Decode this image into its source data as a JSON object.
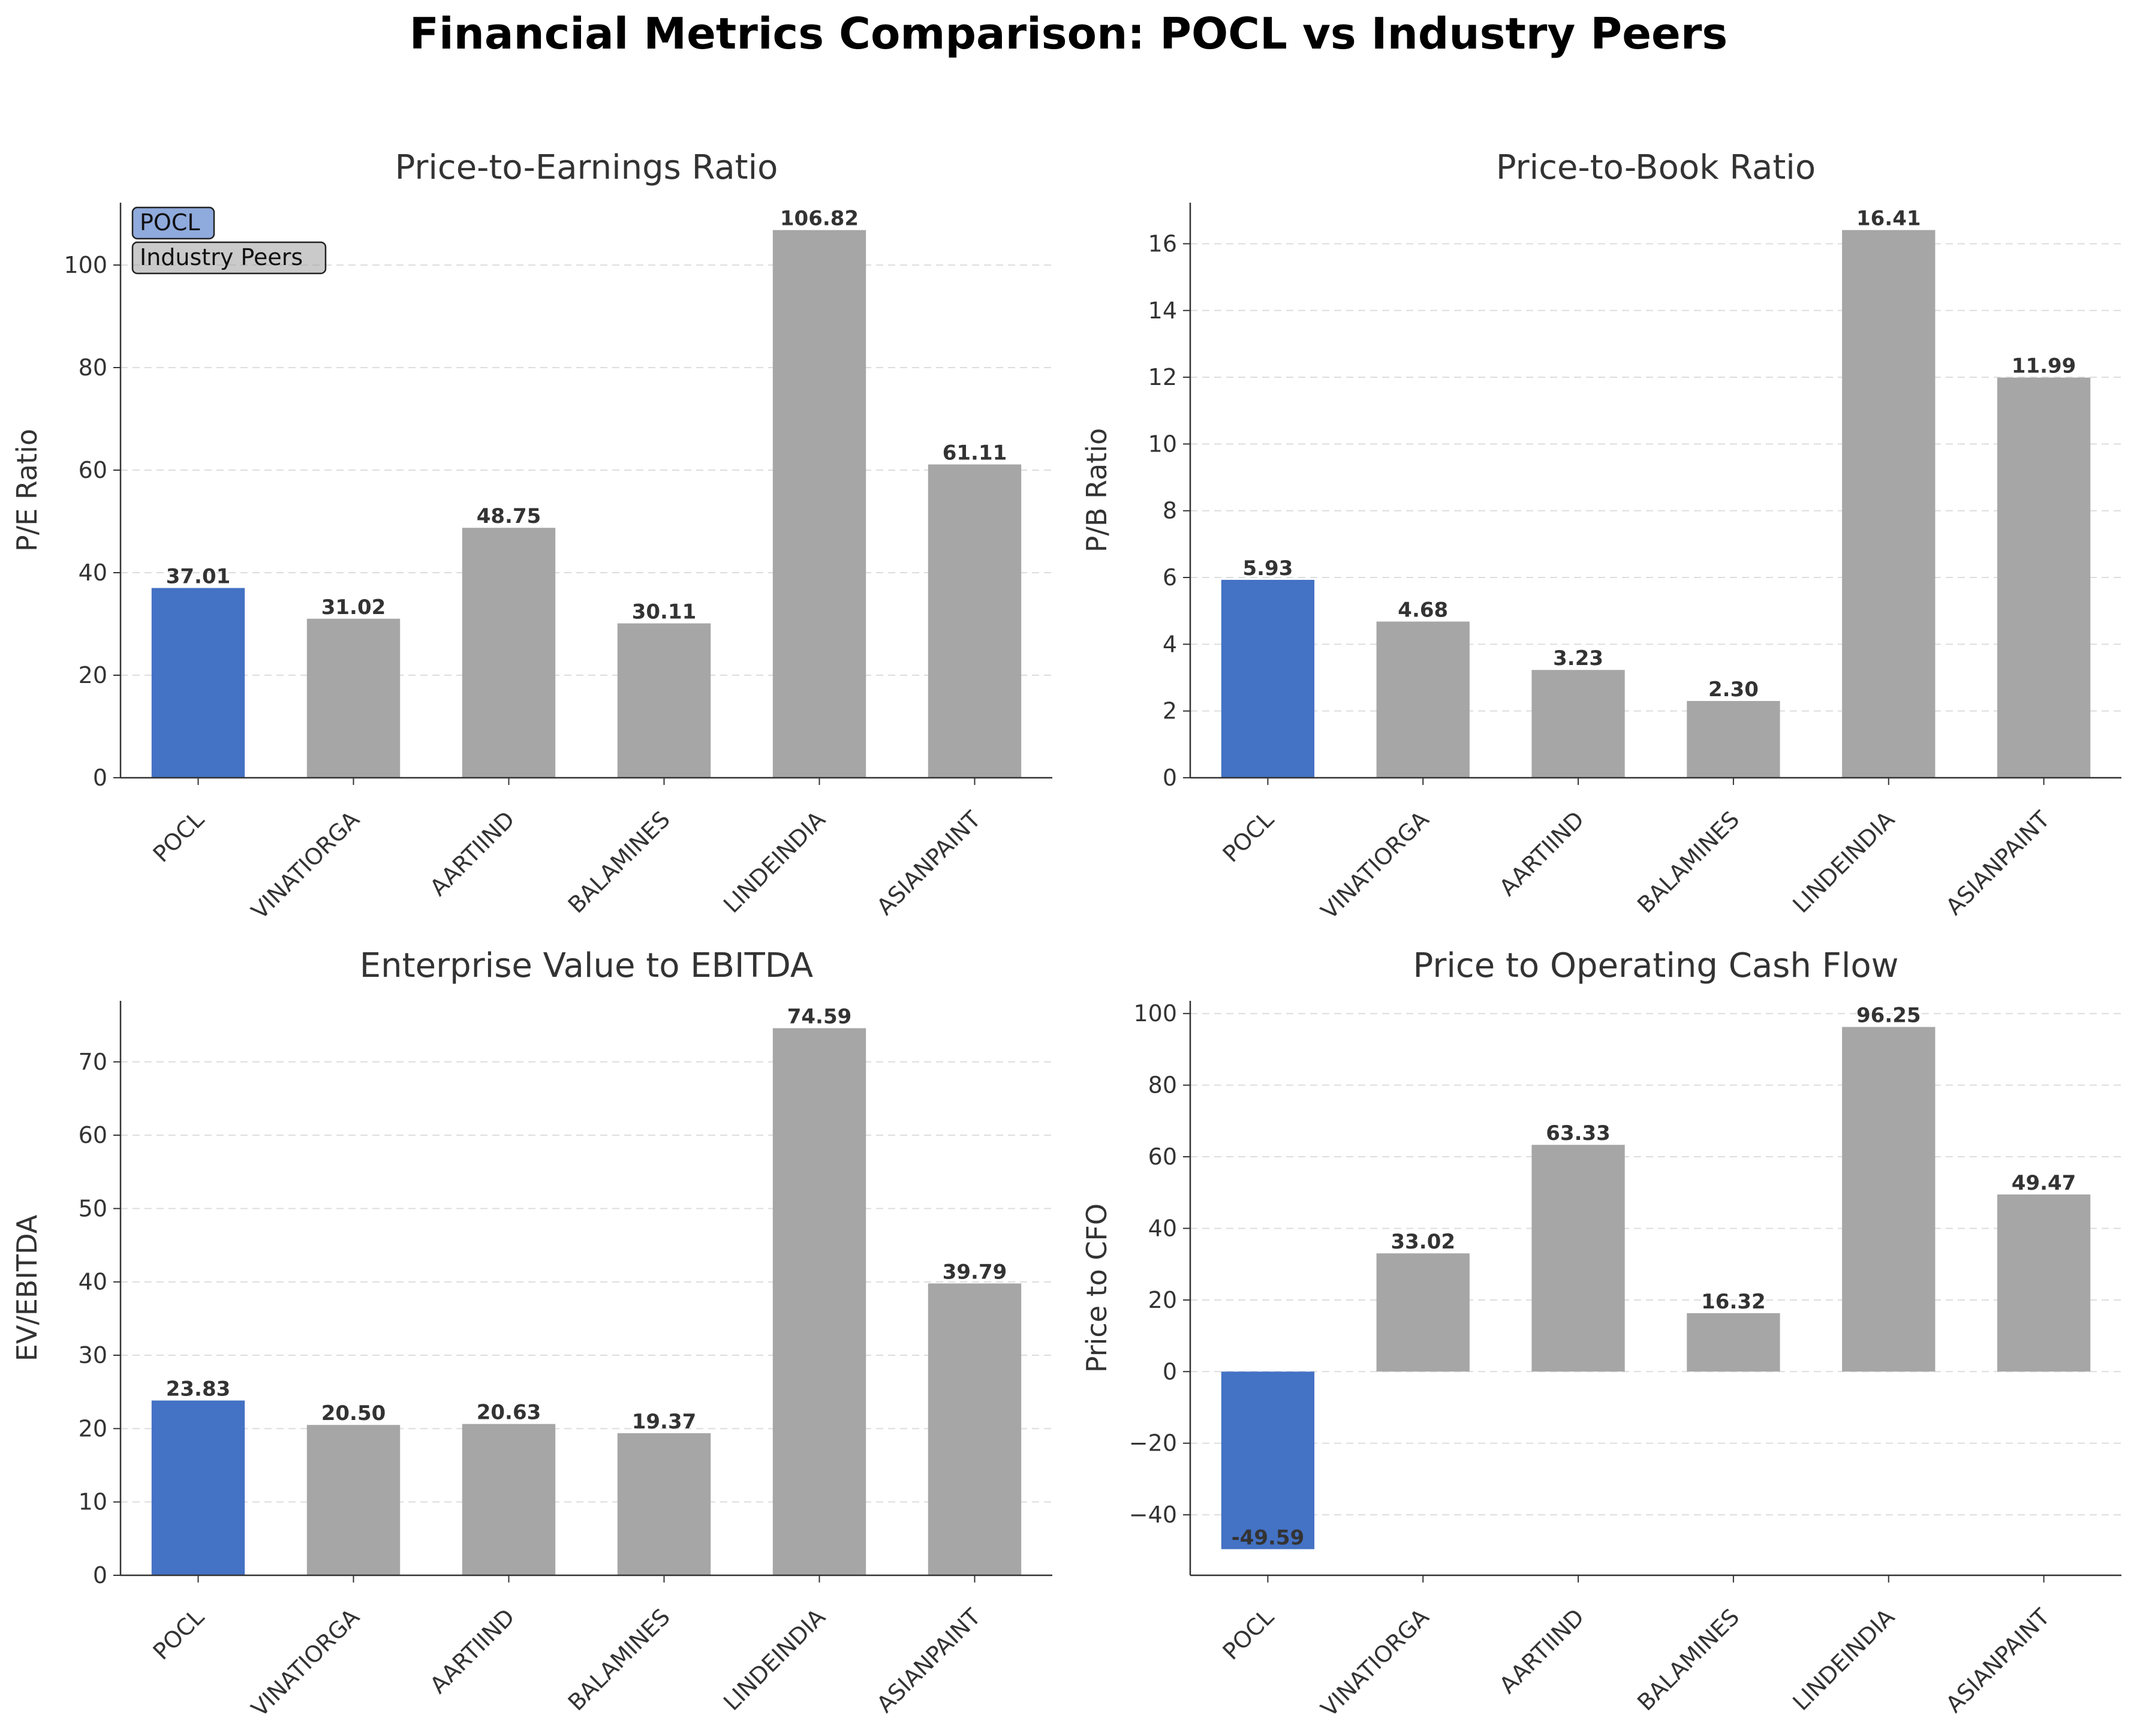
{
  "title": "Financial Metrics Comparison: POCL vs Industry Peers",
  "colors": {
    "pocl": "#4472c4",
    "peers": "#a6a6a6",
    "axis": "#333333",
    "grid": "#dddddd",
    "text": "#333333"
  },
  "legend": {
    "items": [
      {
        "label": "POCL",
        "color": "#4472c4"
      },
      {
        "label": "Industry Peers",
        "color": "#a6a6a6"
      }
    ]
  },
  "chart_data": [
    {
      "type": "bar",
      "title": "Price-to-Earnings Ratio",
      "ylabel": "P/E Ratio",
      "categories": [
        "POCL",
        "VINATIORGA",
        "AARTIIND",
        "BALAMINES",
        "LINDEINDIA",
        "ASIANPAINT"
      ],
      "values": [
        37.01,
        31.02,
        48.75,
        30.11,
        106.82,
        61.11
      ],
      "labels": [
        "37.01",
        "31.02",
        "48.75",
        "30.11",
        "106.82",
        "61.11"
      ],
      "ylim": [
        0,
        112.16
      ],
      "yticks": [
        0,
        20,
        40,
        60,
        80,
        100
      ],
      "ytick_labels": [
        "0",
        "20",
        "40",
        "60",
        "80",
        "100"
      ],
      "grid": "y-dashed",
      "legend": "top-left"
    },
    {
      "type": "bar",
      "title": "Price-to-Book Ratio",
      "ylabel": "P/B Ratio",
      "categories": [
        "POCL",
        "VINATIORGA",
        "AARTIIND",
        "BALAMINES",
        "LINDEINDIA",
        "ASIANPAINT"
      ],
      "values": [
        5.93,
        4.68,
        3.23,
        2.3,
        16.41,
        11.99
      ],
      "labels": [
        "5.93",
        "4.68",
        "3.23",
        "2.30",
        "16.41",
        "11.99"
      ],
      "ylim": [
        0,
        17.23
      ],
      "yticks": [
        0,
        2,
        4,
        6,
        8,
        10,
        12,
        14,
        16
      ],
      "ytick_labels": [
        "0",
        "2",
        "4",
        "6",
        "8",
        "10",
        "12",
        "14",
        "16"
      ],
      "grid": "y-dashed"
    },
    {
      "type": "bar",
      "title": "Enterprise Value to EBITDA",
      "ylabel": "EV/EBITDA",
      "categories": [
        "POCL",
        "VINATIORGA",
        "AARTIIND",
        "BALAMINES",
        "LINDEINDIA",
        "ASIANPAINT"
      ],
      "values": [
        23.83,
        20.5,
        20.63,
        19.37,
        74.59,
        39.79
      ],
      "labels": [
        "23.83",
        "20.50",
        "20.63",
        "19.37",
        "74.59",
        "39.79"
      ],
      "ylim": [
        0,
        78.32
      ],
      "yticks": [
        0,
        10,
        20,
        30,
        40,
        50,
        60,
        70
      ],
      "ytick_labels": [
        "0",
        "10",
        "20",
        "30",
        "40",
        "50",
        "60",
        "70"
      ],
      "grid": "y-dashed"
    },
    {
      "type": "bar",
      "title": "Price to Operating Cash Flow",
      "ylabel": "Price to CFO",
      "categories": [
        "POCL",
        "VINATIORGA",
        "AARTIIND",
        "BALAMINES",
        "LINDEINDIA",
        "ASIANPAINT"
      ],
      "values": [
        -49.59,
        33.02,
        63.33,
        16.32,
        96.25,
        49.47
      ],
      "labels": [
        "-49.59",
        "33.02",
        "63.33",
        "16.32",
        "96.25",
        "49.47"
      ],
      "ylim": [
        -56.89,
        103.55
      ],
      "yticks": [
        -40,
        -20,
        0,
        20,
        40,
        60,
        80,
        100
      ],
      "ytick_labels": [
        "−40",
        "−20",
        "0",
        "20",
        "40",
        "60",
        "80",
        "100"
      ],
      "grid": "y-dashed"
    }
  ]
}
